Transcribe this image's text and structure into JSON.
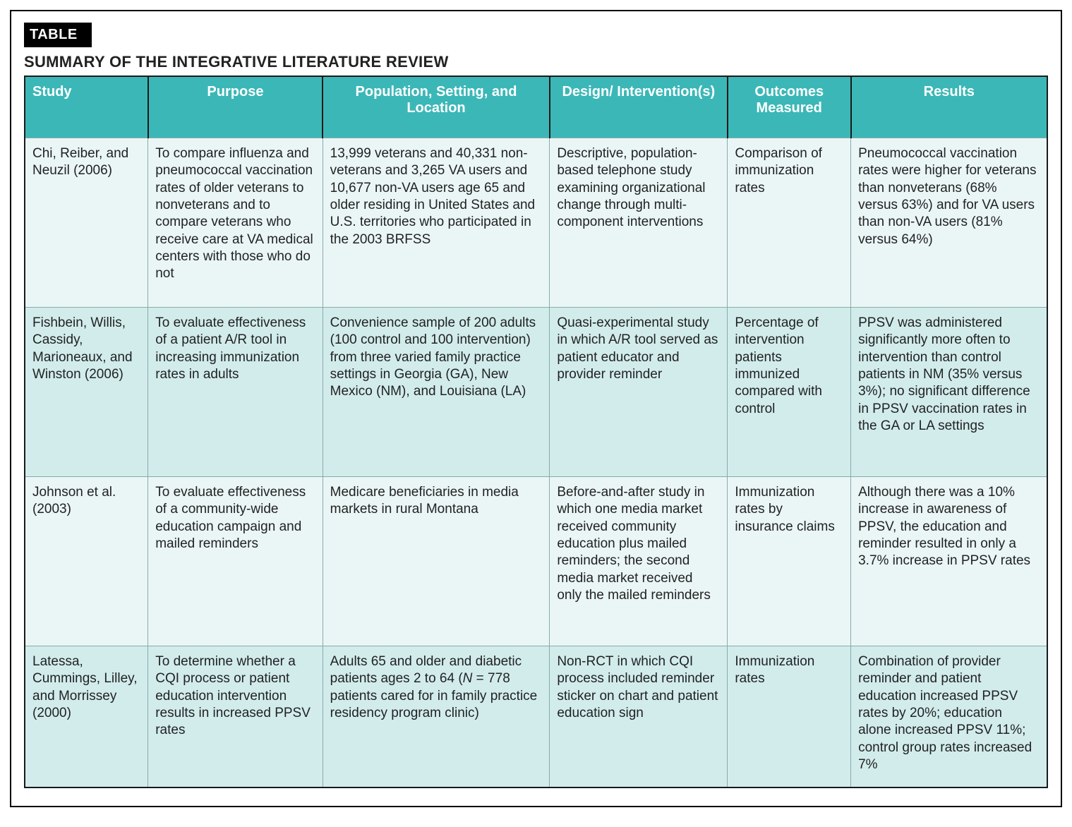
{
  "badge_label": "TABLE",
  "title": "SUMMARY OF THE INTEGRATIVE LITERATURE REVIEW",
  "colors": {
    "header_bg": "#3cb7b7",
    "header_text": "#ffffff",
    "row_odd_bg": "#eaf6f6",
    "row_even_bg": "#d2ecec",
    "border": "#1a1a1a",
    "cell_border": "#88aaaa",
    "text": "#222222",
    "badge_bg": "#000000",
    "badge_text": "#ffffff"
  },
  "table": {
    "columns": [
      {
        "label": "Study",
        "width_pct": 11.3,
        "align": "left"
      },
      {
        "label": "Purpose",
        "width_pct": 16.0,
        "align": "center"
      },
      {
        "label": "Population, Setting, and Location",
        "width_pct": 20.8,
        "align": "center"
      },
      {
        "label": "Design/ Intervention(s)",
        "width_pct": 16.3,
        "align": "center"
      },
      {
        "label": "Outcomes Measured",
        "width_pct": 11.3,
        "align": "center"
      },
      {
        "label": "Results",
        "width_pct": 18.0,
        "align": "center"
      }
    ],
    "rows": [
      {
        "study": "Chi, Reiber, and Neuzil (2006)",
        "purpose": "To compare influenza and pneumococcal vaccination rates of older veterans to nonveterans and to compare veterans who receive care at VA medical centers with those who do not",
        "population": "13,999 veterans and 40,331 non-veterans and 3,265 VA users and 10,677 non-VA users age 65 and older residing in United States and U.S. territories who participated in the 2003 BRFSS",
        "design": "Descriptive, population-based telephone study examining organizational change through multi-component interventions",
        "outcomes": "Comparison of immunization rates",
        "results": "Pneumococcal vaccination rates were higher for veterans than nonveterans (68% versus 63%) and for VA users than non-VA users (81% versus 64%)"
      },
      {
        "study": "Fishbein, Willis, Cassidy, Marioneaux, and Winston (2006)",
        "purpose": "To evaluate effectiveness of a patient A/R tool in increasing immunization rates in adults",
        "population": "Convenience sample of 200 adults (100 control and 100 intervention) from three varied family practice settings in Georgia (GA), New Mexico (NM), and Louisiana (LA)",
        "design": "Quasi-experimental study in which A/R tool served as patient educator and provider reminder",
        "outcomes": "Percentage of intervention patients immunized compared with control",
        "results": "PPSV was administered significantly more often to intervention than control patients in NM (35% versus 3%); no significant difference in PPSV vaccination rates in the GA or LA settings"
      },
      {
        "study": "Johnson et al. (2003)",
        "purpose": "To evaluate effectiveness of a community-wide education campaign and mailed reminders",
        "population": "Medicare beneficiaries in media markets in rural Montana",
        "design": "Before-and-after study in which one media market received community education plus mailed reminders; the second media market received only the mailed reminders",
        "outcomes": "Immunization rates by insurance claims",
        "results": "Although there was a 10% increase in awareness of PPSV, the education and reminder resulted in only a 3.7% increase in PPSV rates"
      },
      {
        "study": "Latessa, Cummings, Lilley, and Morrissey (2000)",
        "purpose": "To determine whether a CQI process or patient education intervention results in increased PPSV rates",
        "population_prefix": "Adults 65 and older and diabetic patients ages 2 to 64 (",
        "population_italic": "N",
        "population_suffix": " = 778 patients cared for in family practice residency program clinic)",
        "design": "Non-RCT in which CQI process included reminder sticker on chart and patient education sign",
        "outcomes": "Immunization rates",
        "results": "Combination of provider reminder and patient education increased PPSV rates by 20%; education alone increased PPSV 11%; control group rates increased 7%"
      }
    ]
  }
}
